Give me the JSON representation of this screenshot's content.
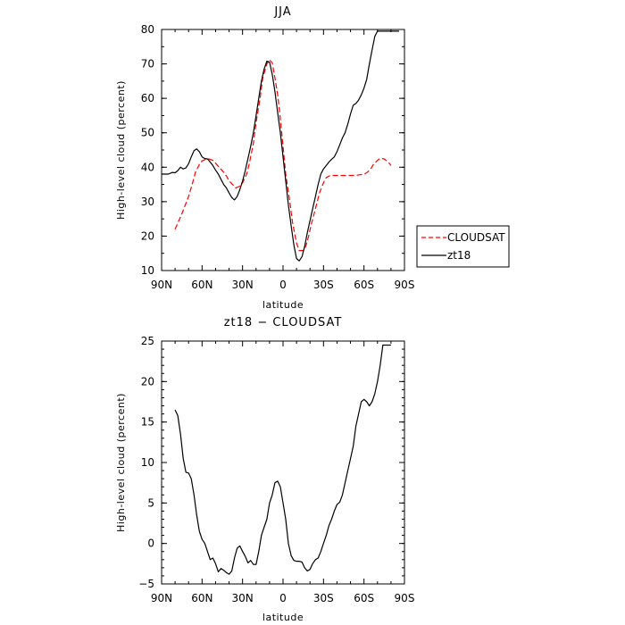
{
  "chart_data": [
    {
      "type": "line",
      "title": "JJA",
      "xlabel": "latitude",
      "ylabel": "High-level cloud (percent)",
      "xlim": [
        90,
        -90
      ],
      "ylim": [
        10,
        80
      ],
      "xticks": [
        90,
        60,
        30,
        0,
        -30,
        -60,
        -90
      ],
      "xtick_labels": [
        "90N",
        "60N",
        "30N",
        "0",
        "30S",
        "60S",
        "90S"
      ],
      "yticks": [
        10,
        20,
        30,
        40,
        50,
        60,
        70,
        80
      ],
      "ytick_labels": [
        "10",
        "20",
        "30",
        "40",
        "50",
        "60",
        "70",
        "80"
      ],
      "legend_position": "right",
      "series": [
        {
          "name": "CLOUDSAT",
          "color": "#ff0000",
          "style": "dashed",
          "x": [
            80,
            75,
            70,
            67,
            65,
            62,
            60,
            58,
            55,
            52,
            50,
            47,
            45,
            42,
            40,
            37,
            35,
            32,
            30,
            27,
            25,
            22,
            20,
            17,
            15,
            12,
            10,
            8,
            6,
            4,
            2,
            0,
            -2,
            -5,
            -7,
            -10,
            -12,
            -15,
            -17,
            -19,
            -21,
            -23,
            -25,
            -27,
            -30,
            -32,
            -35,
            -37,
            -40,
            -45,
            -50,
            -55,
            -60,
            -62,
            -65,
            -67,
            -70,
            -72,
            -75,
            -78,
            -80
          ],
          "y": [
            22,
            26.5,
            31.5,
            35.5,
            38.5,
            40.8,
            41.8,
            42.2,
            42.4,
            42,
            41.2,
            39.8,
            39,
            37.5,
            36,
            34.8,
            34,
            34.5,
            35.5,
            38,
            41,
            47,
            53,
            60,
            66,
            70,
            71.2,
            70.3,
            66,
            61,
            54,
            46,
            38,
            30,
            24,
            18,
            15.8,
            15.8,
            17.2,
            20,
            23.5,
            26.5,
            29.5,
            32.5,
            35.5,
            37,
            37.6,
            37.6,
            37.6,
            37.6,
            37.6,
            37.7,
            38,
            38.4,
            39.5,
            40.8,
            42,
            42.6,
            42.4,
            41.5,
            40.5
          ]
        },
        {
          "name": "zt18",
          "color": "#000000",
          "style": "solid",
          "x": [
            90,
            87,
            85,
            82,
            80,
            78,
            76,
            74,
            72,
            70,
            68,
            66,
            64,
            62,
            60,
            58,
            56,
            54,
            52,
            50,
            48,
            46,
            44,
            42,
            40,
            38,
            36,
            34,
            32,
            30,
            28,
            26,
            24,
            22,
            20,
            18,
            16,
            14,
            12,
            10,
            8,
            6,
            4,
            2,
            0,
            -2,
            -4,
            -6,
            -8,
            -10,
            -12,
            -14,
            -16,
            -18,
            -20,
            -22,
            -24,
            -26,
            -28,
            -30,
            -32,
            -34,
            -36,
            -38,
            -40,
            -42,
            -44,
            -46,
            -48,
            -50,
            -52,
            -54,
            -56,
            -58,
            -60,
            -62,
            -64,
            -66,
            -68,
            -70,
            -72,
            -74,
            -76,
            -78,
            -80,
            -82,
            -84,
            -86
          ],
          "y": [
            38,
            38,
            38,
            38.5,
            38.4,
            39,
            40,
            39.5,
            39.8,
            41,
            43,
            44.8,
            45.3,
            44.5,
            43,
            42.5,
            42.4,
            41.5,
            40.5,
            39.2,
            38,
            36.5,
            35,
            34,
            32.5,
            31.2,
            30.5,
            31.5,
            33.5,
            36,
            39,
            42.5,
            46,
            50,
            55,
            60,
            65,
            68.5,
            70.8,
            70.5,
            67,
            62,
            55.8,
            50,
            43,
            36,
            29,
            23,
            17.5,
            13.5,
            12.8,
            14,
            17,
            21,
            24.5,
            28,
            31.5,
            35,
            38,
            39.5,
            40.5,
            41.5,
            42.3,
            43,
            44.5,
            46.5,
            48.5,
            50,
            52.5,
            55.5,
            58,
            58.5,
            59.5,
            61,
            63,
            65.5,
            70,
            74,
            78,
            79.5,
            79.5,
            79.5,
            79.5,
            79.5,
            79.5,
            79.5,
            79.5,
            79.5
          ]
        }
      ]
    },
    {
      "type": "line",
      "title": "zt18 − CLOUDSAT",
      "xlabel": "latitude",
      "ylabel": "High-level cloud (percent)",
      "xlim": [
        90,
        -90
      ],
      "ylim": [
        -5,
        25
      ],
      "xticks": [
        90,
        60,
        30,
        0,
        -30,
        -60,
        -90
      ],
      "xtick_labels": [
        "90N",
        "60N",
        "30N",
        "0",
        "30S",
        "60S",
        "90S"
      ],
      "yticks": [
        -5,
        0,
        5,
        10,
        15,
        20,
        25
      ],
      "ytick_labels": [
        "−5",
        "0",
        "5",
        "10",
        "15",
        "20",
        "25"
      ],
      "series": [
        {
          "color": "#000000",
          "style": "solid",
          "x": [
            80,
            78,
            76,
            74,
            72,
            70,
            68,
            66,
            64,
            62,
            60,
            58,
            56,
            54,
            52,
            50,
            48,
            46,
            44,
            42,
            40,
            38,
            36,
            34,
            32,
            30,
            28,
            26,
            24,
            22,
            20,
            18,
            16,
            14,
            12,
            10,
            8,
            6,
            4,
            2,
            0,
            -2,
            -4,
            -6,
            -8,
            -10,
            -12,
            -14,
            -16,
            -18,
            -20,
            -22,
            -24,
            -26,
            -28,
            -30,
            -32,
            -34,
            -36,
            -38,
            -40,
            -42,
            -44,
            -46,
            -48,
            -50,
            -52,
            -54,
            -56,
            -58,
            -60,
            -62,
            -64,
            -66,
            -68,
            -70,
            -72,
            -74,
            -76,
            -78,
            -80
          ],
          "y": [
            16.5,
            15.8,
            13.5,
            10.5,
            8.8,
            8.7,
            8,
            6,
            3.5,
            1.5,
            0.5,
            0,
            -1,
            -2,
            -1.8,
            -2.5,
            -3.5,
            -3.1,
            -3.3,
            -3.6,
            -3.8,
            -3.4,
            -1.8,
            -0.6,
            -0.3,
            -1,
            -1.6,
            -2.4,
            -2.1,
            -2.6,
            -2.6,
            -1,
            1,
            2,
            3,
            5,
            6,
            7.5,
            7.7,
            7,
            5,
            3,
            0,
            -1.5,
            -2.1,
            -2.2,
            -2.2,
            -2.3,
            -3,
            -3.4,
            -3.2,
            -2.5,
            -2,
            -1.8,
            -1,
            0,
            1,
            2.2,
            3,
            4,
            4.8,
            5.1,
            6,
            7.5,
            9,
            10.5,
            12,
            14.5,
            16,
            17.5,
            17.8,
            17.5,
            17,
            17.5,
            18.5,
            20,
            22,
            24.5,
            24.5,
            24.5,
            24.5
          ]
        }
      ]
    }
  ]
}
